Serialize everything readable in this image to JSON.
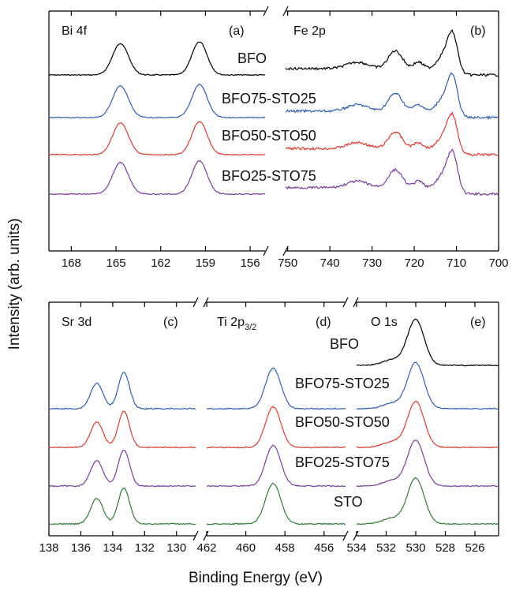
{
  "figure": {
    "xlabel": "Binding Energy (eV)",
    "ylabel": "Intensity (arb. units)"
  },
  "chart_data": [
    {
      "type": "line",
      "panel": "(a)",
      "title": "Bi 4f",
      "xlim": [
        169.5,
        155
      ],
      "ticks": [
        168,
        165,
        162,
        159,
        156
      ],
      "peaks_x": [
        164.7,
        159.4
      ],
      "series": [
        {
          "name": "BFO",
          "color": "#000000",
          "heights": [
            1.0,
            1.05
          ]
        },
        {
          "name": "BFO75-STO25",
          "color": "#2f5fb0",
          "heights": [
            1.0,
            1.05
          ]
        },
        {
          "name": "BFO50-STO50",
          "color": "#e03a2e",
          "heights": [
            1.0,
            1.05
          ]
        },
        {
          "name": "BFO25-STO75",
          "color": "#7a3c9e",
          "heights": [
            1.0,
            1.05
          ]
        }
      ]
    },
    {
      "type": "line",
      "panel": "(b)",
      "title": "Fe 2p",
      "xlim": [
        750.5,
        700
      ],
      "ticks": [
        750,
        740,
        730,
        720,
        710,
        700
      ],
      "peaks_x": [
        724.5,
        719.0,
        711.0
      ],
      "series": [
        {
          "name": "BFO",
          "color": "#000000"
        },
        {
          "name": "BFO75-STO25",
          "color": "#2f5fb0"
        },
        {
          "name": "BFO50-STO50",
          "color": "#e03a2e"
        },
        {
          "name": "BFO25-STO75",
          "color": "#7a3c9e"
        }
      ]
    },
    {
      "type": "line",
      "panel": "(c)",
      "title": "Sr 3d",
      "xlim": [
        138,
        128.8
      ],
      "ticks": [
        138,
        136,
        134,
        132,
        130
      ],
      "peaks_x": [
        135.0,
        133.3
      ],
      "series": [
        {
          "name": "BFO75-STO25",
          "color": "#2f5fb0"
        },
        {
          "name": "BFO50-STO50",
          "color": "#e03a2e"
        },
        {
          "name": "BFO25-STO75",
          "color": "#7a3c9e"
        },
        {
          "name": "STO",
          "color": "#2e7d32"
        }
      ]
    },
    {
      "type": "line",
      "panel": "(d)",
      "title_main": "Ti 2p",
      "title_sub": "3/2",
      "xlim": [
        462,
        454.9
      ],
      "ticks": [
        462,
        460,
        458,
        456
      ],
      "peaks_x": [
        458.6
      ],
      "series": [
        {
          "name": "BFO75-STO25",
          "color": "#2f5fb0"
        },
        {
          "name": "BFO50-STO50",
          "color": "#e03a2e"
        },
        {
          "name": "BFO25-STO75",
          "color": "#7a3c9e"
        },
        {
          "name": "STO",
          "color": "#2e7d32"
        }
      ]
    },
    {
      "type": "line",
      "panel": "(e)",
      "title": "O 1s",
      "xlim": [
        534,
        524.4
      ],
      "ticks": [
        534,
        532,
        530,
        528,
        526
      ],
      "peaks_x": [
        530.0
      ],
      "series": [
        {
          "name": "BFO",
          "color": "#000000"
        },
        {
          "name": "BFO75-STO25",
          "color": "#2f5fb0"
        },
        {
          "name": "BFO50-STO50",
          "color": "#e03a2e"
        },
        {
          "name": "BFO25-STO75",
          "color": "#7a3c9e"
        },
        {
          "name": "STO",
          "color": "#2e7d32"
        }
      ]
    }
  ]
}
